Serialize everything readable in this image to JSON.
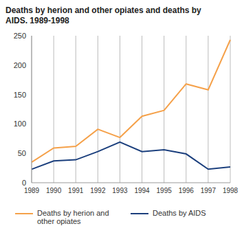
{
  "chart_data": {
    "type": "line",
    "title": "Deaths by herion and other opiates and deaths by AIDS. 1989-1998",
    "categories": [
      "1989",
      "1990",
      "1991",
      "1992",
      "1993",
      "1994",
      "1995",
      "1996",
      "1997",
      "1998"
    ],
    "series": [
      {
        "name": "Deaths by herion and other opiates",
        "color": "#f5a14a",
        "values": [
          35,
          59,
          62,
          91,
          77,
          113,
          123,
          168,
          158,
          243
        ]
      },
      {
        "name": "Deaths by AIDS",
        "color": "#1b3f7d",
        "values": [
          23,
          37,
          39,
          53,
          69,
          53,
          56,
          49,
          23,
          27
        ]
      }
    ],
    "ylim": [
      0,
      250
    ],
    "yticks": [
      0,
      50,
      100,
      150,
      200,
      250
    ],
    "grid": true,
    "legend": "bottom",
    "marker": "none",
    "line_style": "solid"
  }
}
